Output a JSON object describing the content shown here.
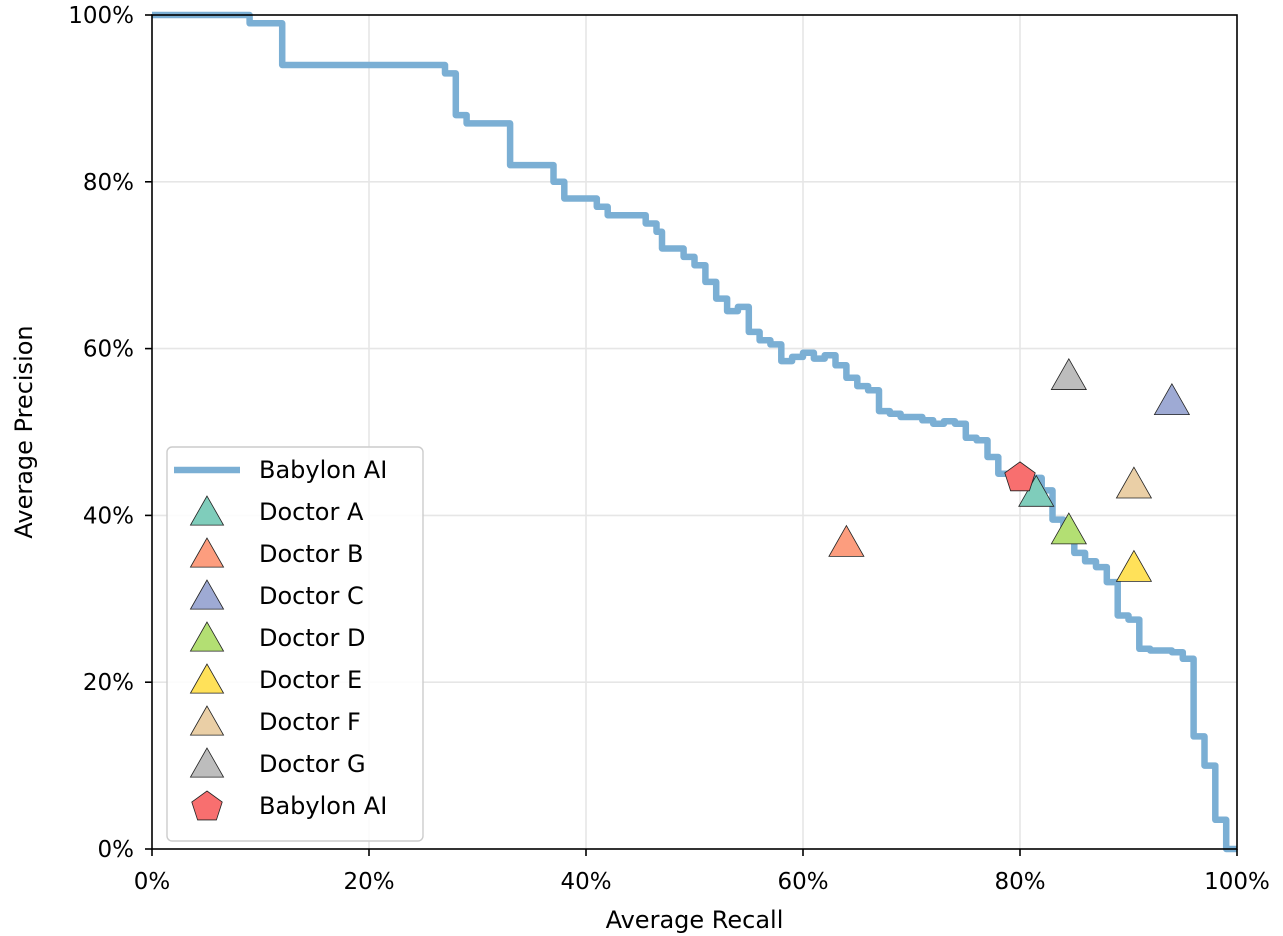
{
  "chart_data": {
    "type": "line",
    "xlabel": "Average Recall",
    "ylabel": "Average Precision",
    "xlim": [
      0,
      100
    ],
    "ylim": [
      0,
      100
    ],
    "x_ticks": [
      "0%",
      "20%",
      "40%",
      "60%",
      "80%",
      "100%"
    ],
    "y_ticks": [
      "0%",
      "20%",
      "40%",
      "60%",
      "80%",
      "100%"
    ],
    "grid": true,
    "legend_position": "lower-left",
    "series": [
      {
        "name": "Babylon AI",
        "kind": "step-line",
        "color": "#7bafd4",
        "points": [
          [
            0,
            100
          ],
          [
            9,
            100
          ],
          [
            9,
            99
          ],
          [
            12,
            99
          ],
          [
            12,
            94
          ],
          [
            27,
            94
          ],
          [
            27,
            93
          ],
          [
            28,
            93
          ],
          [
            28,
            88
          ],
          [
            29,
            88
          ],
          [
            29,
            87
          ],
          [
            33,
            87
          ],
          [
            33,
            82
          ],
          [
            37,
            82
          ],
          [
            37,
            80
          ],
          [
            38,
            80
          ],
          [
            38,
            78
          ],
          [
            41,
            78
          ],
          [
            41,
            77
          ],
          [
            42,
            77
          ],
          [
            42,
            76
          ],
          [
            45.5,
            76
          ],
          [
            45.5,
            75
          ],
          [
            46.5,
            75
          ],
          [
            46.5,
            74
          ],
          [
            47,
            74
          ],
          [
            47,
            72
          ],
          [
            49,
            72
          ],
          [
            49,
            71
          ],
          [
            50,
            71
          ],
          [
            50,
            70
          ],
          [
            51,
            70
          ],
          [
            51,
            68
          ],
          [
            52,
            68
          ],
          [
            52,
            66
          ],
          [
            53,
            66
          ],
          [
            53,
            64.5
          ],
          [
            54,
            64.5
          ],
          [
            54,
            65
          ],
          [
            55,
            65
          ],
          [
            55,
            62
          ],
          [
            56,
            62
          ],
          [
            56,
            61
          ],
          [
            57,
            61
          ],
          [
            57,
            60.5
          ],
          [
            58,
            60.5
          ],
          [
            58,
            58.5
          ],
          [
            59,
            58.5
          ],
          [
            59,
            59
          ],
          [
            60,
            59
          ],
          [
            60,
            59.5
          ],
          [
            61,
            59.5
          ],
          [
            61,
            58.8
          ],
          [
            62,
            58.8
          ],
          [
            62,
            59.2
          ],
          [
            63,
            59.2
          ],
          [
            63,
            58
          ],
          [
            64,
            58
          ],
          [
            64,
            56.5
          ],
          [
            65,
            56.5
          ],
          [
            65,
            55.5
          ],
          [
            66,
            55.5
          ],
          [
            66,
            55
          ],
          [
            67,
            55
          ],
          [
            67,
            52.5
          ],
          [
            68,
            52.5
          ],
          [
            68,
            52.2
          ],
          [
            69,
            52.2
          ],
          [
            69,
            51.8
          ],
          [
            70,
            51.8
          ],
          [
            70,
            51.8
          ],
          [
            71,
            51.8
          ],
          [
            71,
            51.4
          ],
          [
            72,
            51.4
          ],
          [
            72,
            51
          ],
          [
            73,
            51
          ],
          [
            73,
            51.3
          ],
          [
            74,
            51.3
          ],
          [
            74,
            51
          ],
          [
            75,
            51
          ],
          [
            75,
            49.3
          ],
          [
            76,
            49.3
          ],
          [
            76,
            49
          ],
          [
            77,
            49
          ],
          [
            77,
            47
          ],
          [
            78,
            47
          ],
          [
            78,
            45
          ],
          [
            80,
            45
          ],
          [
            80,
            44.8
          ],
          [
            81,
            44.8
          ],
          [
            81,
            44.5
          ],
          [
            82,
            44.5
          ],
          [
            82,
            43
          ],
          [
            83,
            43
          ],
          [
            83,
            39.5
          ],
          [
            84,
            39.5
          ],
          [
            84,
            37.5
          ],
          [
            85,
            37.5
          ],
          [
            85,
            35.5
          ],
          [
            86,
            35.5
          ],
          [
            86,
            34.5
          ],
          [
            87,
            34.5
          ],
          [
            87,
            33.8
          ],
          [
            88,
            33.8
          ],
          [
            88,
            32
          ],
          [
            89,
            32
          ],
          [
            89,
            28
          ],
          [
            90,
            28
          ],
          [
            90,
            27.5
          ],
          [
            91,
            27.5
          ],
          [
            91,
            24
          ],
          [
            92,
            24
          ],
          [
            92,
            23.8
          ],
          [
            94,
            23.8
          ],
          [
            94,
            23.6
          ],
          [
            95,
            23.6
          ],
          [
            95,
            22.8
          ],
          [
            96,
            22.8
          ],
          [
            96,
            13.5
          ],
          [
            97,
            13.5
          ],
          [
            97,
            10
          ],
          [
            98,
            10
          ],
          [
            98,
            3.5
          ],
          [
            99,
            3.5
          ],
          [
            99,
            0
          ],
          [
            100,
            0
          ]
        ]
      },
      {
        "name": "Doctor A",
        "kind": "triangle",
        "color": "#7fcdbb",
        "x": 81.5,
        "y": 42.5
      },
      {
        "name": "Doctor B",
        "kind": "triangle",
        "color": "#fc9d7e",
        "x": 64,
        "y": 36.5
      },
      {
        "name": "Doctor C",
        "kind": "triangle",
        "color": "#9eaad4",
        "x": 94,
        "y": 53.5
      },
      {
        "name": "Doctor D",
        "kind": "triangle",
        "color": "#b3df73",
        "x": 84.5,
        "y": 38
      },
      {
        "name": "Doctor E",
        "kind": "triangle",
        "color": "#ffe159",
        "x": 90.5,
        "y": 33.5
      },
      {
        "name": "Doctor F",
        "kind": "triangle",
        "color": "#eacfa6",
        "x": 90.5,
        "y": 43.5
      },
      {
        "name": "Doctor G",
        "kind": "triangle",
        "color": "#bdbdbd",
        "x": 84.5,
        "y": 56.5
      },
      {
        "name": "Babylon AI",
        "kind": "pentagon",
        "color": "#f86f6f",
        "x": 80,
        "y": 44.5
      }
    ]
  }
}
